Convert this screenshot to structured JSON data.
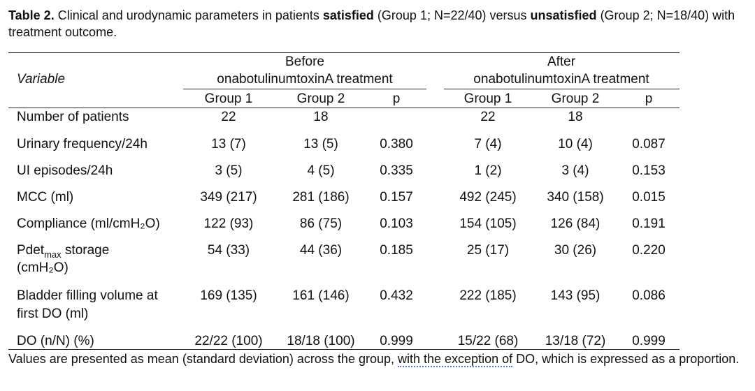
{
  "caption": {
    "label": "Table 2.",
    "text1": " Clinical and urodynamic parameters in patients ",
    "bold1": "satisfied",
    "text2": " (Group 1; N=22/40) versus ",
    "bold2": "unsatisfied",
    "text3": " (Group 2; N=18/40) with treatment outcome."
  },
  "header": {
    "variable": "Variable",
    "before_line1": "Before",
    "before_line2": "onabotulinumtoxinA treatment",
    "after_line1": "After",
    "after_line2": "onabotulinumtoxinA treatment",
    "group1": "Group 1",
    "group2": "Group 2",
    "p": "p"
  },
  "rows": [
    {
      "variable": "Number of patients",
      "b_g1": "22",
      "b_g2": "18",
      "b_p": "",
      "a_g1": "22",
      "a_g2": "18",
      "a_p": ""
    },
    {
      "variable": "Urinary frequency/24h",
      "b_g1": "13 (7)",
      "b_g2": "13 (5)",
      "b_p": "0.380",
      "a_g1": "7 (4)",
      "a_g2": "10 (4)",
      "a_p": "0.087"
    },
    {
      "variable": "UI episodes/24h",
      "b_g1": "3 (5)",
      "b_g2": "4 (5)",
      "b_p": "0.335",
      "a_g1": "1 (2)",
      "a_g2": "3 (4)",
      "a_p": "0.153"
    },
    {
      "variable": "MCC (ml)",
      "b_g1": "349 (217)",
      "b_g2": "281 (186)",
      "b_p": "0.157",
      "a_g1": "492 (245)",
      "a_g2": "340 (158)",
      "a_p": "0.015"
    },
    {
      "variable": "Compliance (ml/cmH₂O)",
      "b_g1": "122 (93)",
      "b_g2": "86 (75)",
      "b_p": "0.103",
      "a_g1": "154 (105)",
      "a_g2": "126 (84)",
      "a_p": "0.191"
    },
    {
      "variable_line1_pre": "Pdet",
      "variable_line1_sub": "max",
      "variable_line1_post": " storage",
      "variable_line2": "(cmH₂O)",
      "b_g1": "54 (33)",
      "b_g2": "44 (36)",
      "b_p": "0.185",
      "a_g1": "25 (17)",
      "a_g2": "30 (26)",
      "a_p": "0.220"
    },
    {
      "variable_line1": "Bladder filling volume at",
      "variable_line2": "first DO (ml)",
      "b_g1": "169 (135)",
      "b_g2": "161 (146)",
      "b_p": "0.432",
      "a_g1": "222 (185)",
      "a_g2": "143 (95)",
      "a_p": "0.086"
    },
    {
      "variable": "DO (n/N) (%)",
      "b_g1": "22/22 (100)",
      "b_g2": "18/18 (100)",
      "b_p": "0.999",
      "a_g1": "15/22 (68)",
      "a_g2": "13/18 (72)",
      "a_p": "0.999"
    }
  ],
  "footnote": {
    "text1": "Values are presented as mean (standard deviation) across the group, ",
    "underlined": "with the exception of",
    "text2": " DO, which is expressed as a proportion."
  }
}
